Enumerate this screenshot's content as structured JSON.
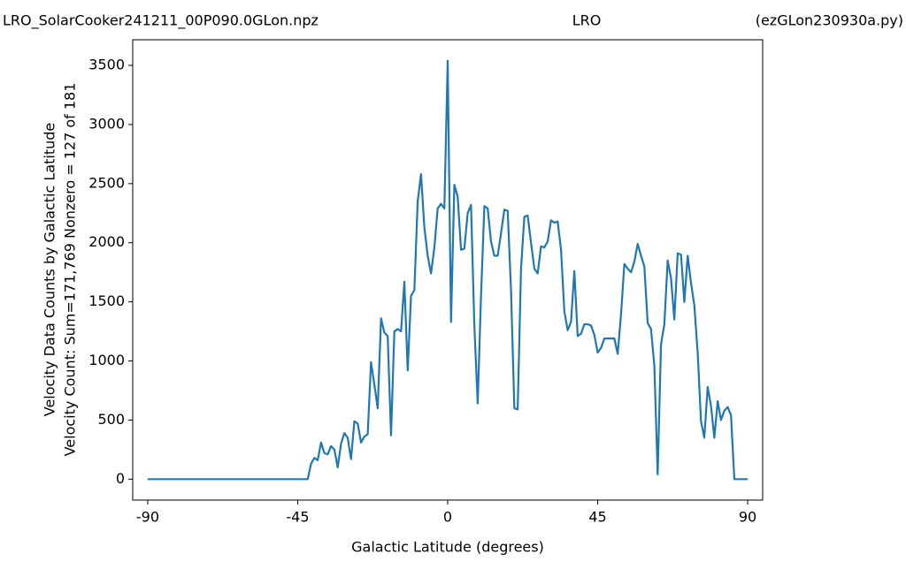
{
  "chart_data": {
    "type": "line",
    "title_left": "LRO_SolarCooker241211_00P090.0GLon.npz",
    "title_center": "LRO",
    "title_right": "(ezGLon230930a.py)",
    "xlabel": "Galactic Latitude (degrees)",
    "ylabel": [
      "Velocity Data Counts by Galactic Latitude",
      "Velocity Count: Sum=171,769 Nonzero = 127 of 181"
    ],
    "x": [
      -90,
      -89,
      -88,
      -87,
      -86,
      -85,
      -84,
      -83,
      -82,
      -81,
      -80,
      -79,
      -78,
      -77,
      -76,
      -75,
      -74,
      -73,
      -72,
      -71,
      -70,
      -69,
      -68,
      -67,
      -66,
      -65,
      -64,
      -63,
      -62,
      -61,
      -60,
      -59,
      -58,
      -57,
      -56,
      -55,
      -54,
      -53,
      -52,
      -51,
      -50,
      -49,
      -48,
      -47,
      -46,
      -45,
      -44,
      -43,
      -42,
      -41,
      -40,
      -39,
      -38,
      -37,
      -36,
      -35,
      -34,
      -33,
      -32,
      -31,
      -30,
      -29,
      -28,
      -27,
      -26,
      -25,
      -24,
      -23,
      -22,
      -21,
      -20,
      -19,
      -18,
      -17,
      -16,
      -15,
      -14,
      -13,
      -12,
      -11,
      -10,
      -9,
      -8,
      -7,
      -6,
      -5,
      -4,
      -3,
      -2,
      -1,
      0,
      1,
      2,
      3,
      4,
      5,
      6,
      7,
      8,
      9,
      10,
      11,
      12,
      13,
      14,
      15,
      16,
      17,
      18,
      19,
      20,
      21,
      22,
      23,
      24,
      25,
      26,
      27,
      28,
      29,
      30,
      31,
      32,
      33,
      34,
      35,
      36,
      37,
      38,
      39,
      40,
      41,
      42,
      43,
      44,
      45,
      46,
      47,
      48,
      49,
      50,
      51,
      52,
      53,
      54,
      55,
      56,
      57,
      58,
      59,
      60,
      61,
      62,
      63,
      64,
      65,
      66,
      67,
      68,
      69,
      70,
      71,
      72,
      73,
      74,
      75,
      76,
      77,
      78,
      79,
      80,
      81,
      82,
      83,
      84,
      85,
      86,
      87,
      88,
      89,
      90
    ],
    "series": [
      {
        "color": "#1f77b4",
        "values": [
          0,
          0,
          0,
          0,
          0,
          0,
          0,
          0,
          0,
          0,
          0,
          0,
          0,
          0,
          0,
          0,
          0,
          0,
          0,
          0,
          0,
          0,
          0,
          0,
          0,
          0,
          0,
          0,
          0,
          0,
          0,
          0,
          0,
          0,
          0,
          0,
          0,
          0,
          0,
          0,
          0,
          0,
          0,
          0,
          0,
          0,
          0,
          0,
          0,
          130,
          180,
          160,
          310,
          220,
          210,
          280,
          250,
          100,
          300,
          390,
          350,
          170,
          490,
          470,
          310,
          360,
          380,
          990,
          800,
          600,
          1360,
          1240,
          1210,
          370,
          1250,
          1270,
          1250,
          1670,
          920,
          1550,
          1600,
          2350,
          2580,
          2130,
          1890,
          1740,
          1960,
          2290,
          2330,
          2290,
          3540,
          1330,
          2490,
          2390,
          1940,
          1950,
          2250,
          2320,
          1300,
          640,
          1550,
          2310,
          2290,
          2010,
          1890,
          1890,
          2080,
          2280,
          2270,
          1600,
          600,
          590,
          1780,
          2220,
          2230,
          2000,
          1780,
          1740,
          1970,
          1960,
          2010,
          2190,
          2170,
          2180,
          1940,
          1420,
          1260,
          1330,
          1760,
          1210,
          1230,
          1310,
          1310,
          1300,
          1220,
          1070,
          1110,
          1190,
          1190,
          1190,
          1190,
          1060,
          1390,
          1820,
          1780,
          1750,
          1840,
          1990,
          1890,
          1800,
          1320,
          1270,
          960,
          40,
          1140,
          1310,
          1850,
          1700,
          1350,
          1910,
          1900,
          1500,
          1890,
          1660,
          1470,
          1070,
          490,
          350,
          780,
          620,
          350,
          660,
          500,
          580,
          610,
          540,
          0,
          0,
          0,
          0,
          0
        ]
      }
    ],
    "xlim": [
      -94.5,
      94.5
    ],
    "xticks": [
      -90,
      -45,
      0,
      45,
      90
    ],
    "ylim": [
      -177,
      3717
    ],
    "yticks": [
      0,
      500,
      1000,
      1500,
      2000,
      2500,
      3000,
      3500
    ]
  }
}
